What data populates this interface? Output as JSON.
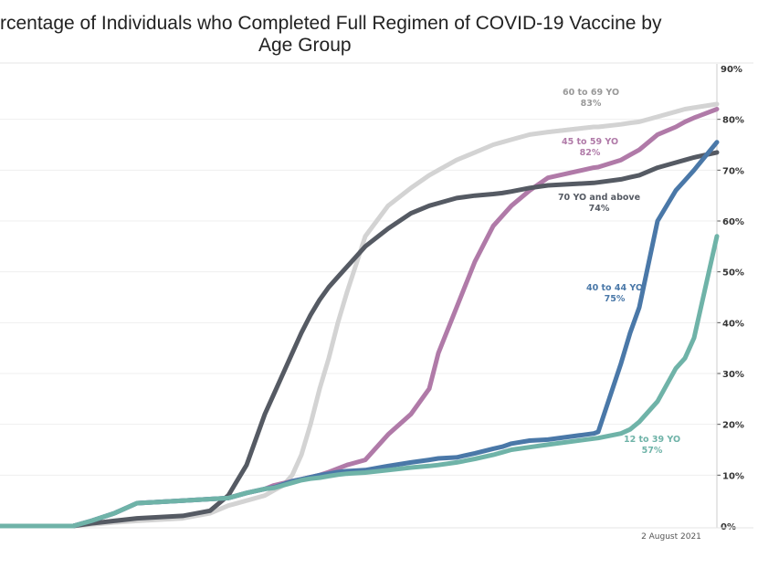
{
  "chart_data": {
    "type": "line",
    "title_line1": "rcentage of Individuals who Completed Full Regimen of COVID-19 Vaccine by",
    "title_line2": "Age Group",
    "x_end_label": "2 August 2021",
    "ylim": [
      0,
      90
    ],
    "yticks": [
      "0%",
      "10%",
      "20%",
      "30%",
      "40%",
      "50%",
      "60%",
      "70%",
      "80%",
      "90%"
    ],
    "grid": true,
    "x_sample": [
      0,
      80,
      100,
      125,
      150,
      200,
      230,
      250,
      270,
      290,
      300,
      310,
      320,
      330,
      340,
      350,
      360,
      370,
      380,
      400,
      425,
      450,
      470,
      480,
      500,
      520,
      540,
      550,
      560,
      580,
      600,
      650,
      655,
      680,
      690,
      700,
      720,
      740,
      750,
      760,
      785
    ],
    "series": [
      {
        "name": "60 to 69 YO",
        "end_label": "83%",
        "color": "#d3d3d3",
        "values": [
          0,
          0,
          0.3,
          0.7,
          1,
          1.5,
          2.5,
          4,
          5,
          6,
          7,
          8,
          10,
          14,
          20,
          27,
          33,
          40,
          46,
          57,
          63,
          66.5,
          69,
          70,
          72,
          73.5,
          75,
          75.5,
          76,
          77,
          77.5,
          78.5,
          78.5,
          79,
          79.3,
          79.5,
          80.5,
          81.5,
          82,
          82.3,
          83
        ]
      },
      {
        "name": "45 to 59 YO",
        "end_label": "82%",
        "color": "#b07aa8",
        "values": [
          0,
          0,
          1,
          2.5,
          4.5,
          5,
          5.3,
          5.5,
          6.5,
          7.3,
          8,
          8.4,
          8.8,
          9.2,
          9.6,
          10,
          10.6,
          11.3,
          12,
          13,
          18,
          22,
          27,
          34,
          43,
          52,
          59,
          61,
          63,
          66,
          68.5,
          70.5,
          70.6,
          72,
          73,
          74,
          77,
          78.5,
          79.5,
          80.3,
          82
        ]
      },
      {
        "name": "70 YO and above",
        "end_label": "74%",
        "color": "#555a63",
        "values": [
          0,
          0,
          0.5,
          1,
          1.5,
          2,
          3,
          6,
          12,
          22,
          26,
          30,
          34,
          38,
          41.5,
          44.5,
          47,
          49,
          51,
          55,
          58.5,
          61.5,
          63,
          63.5,
          64.5,
          65,
          65.3,
          65.5,
          65.8,
          66.5,
          67,
          67.5,
          67.6,
          68.2,
          68.6,
          69,
          70.5,
          71.5,
          72,
          72.5,
          73.5
        ]
      },
      {
        "name": "40 to 44 YO",
        "end_label": "75%",
        "color": "#4a78a8",
        "values": [
          0,
          0,
          1,
          2.5,
          4.5,
          5,
          5.3,
          5.5,
          6.5,
          7.3,
          7.6,
          8.2,
          8.8,
          9.2,
          9.6,
          10,
          10.3,
          10.6,
          10.8,
          11,
          11.8,
          12.5,
          13,
          13.3,
          13.5,
          14.3,
          15.2,
          15.6,
          16.2,
          16.8,
          17,
          18.2,
          18.5,
          32,
          38,
          43,
          60,
          66,
          68,
          70,
          75.5
        ]
      },
      {
        "name": "12 to 39 YO",
        "end_label": "57%",
        "color": "#6fb3a8",
        "values": [
          0,
          0,
          1,
          2.5,
          4.5,
          5,
          5.3,
          5.5,
          6.5,
          7.3,
          7.5,
          8,
          8.5,
          9,
          9.3,
          9.5,
          9.8,
          10.1,
          10.3,
          10.5,
          11,
          11.5,
          11.8,
          12,
          12.5,
          13.2,
          14,
          14.5,
          15,
          15.5,
          16,
          17.2,
          17.3,
          18.2,
          19,
          20.5,
          24.5,
          31,
          33,
          37,
          57
        ]
      }
    ]
  }
}
